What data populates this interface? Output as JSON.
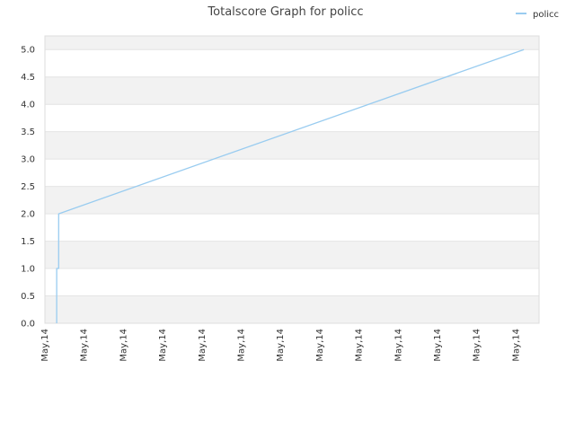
{
  "chart_data": {
    "type": "line",
    "title": "Totalscore Graph for policc",
    "xlabel": "",
    "ylabel": "",
    "x_tick_labels": [
      "May,14",
      "May,14",
      "May,14",
      "May,14",
      "May,14",
      "May,14",
      "May,14",
      "May,14",
      "May,14",
      "May,14",
      "May,14",
      "May,14",
      "May,14"
    ],
    "y_tick_labels": [
      "0.0",
      "0.5",
      "1.0",
      "1.5",
      "2.0",
      "2.5",
      "3.0",
      "3.5",
      "4.0",
      "4.5",
      "5.0"
    ],
    "ylim": [
      0,
      5.25
    ],
    "legend_position": "top-right",
    "grid": true,
    "band_colors": [
      "#f2f2f2",
      "#ffffff"
    ],
    "series": [
      {
        "name": "policc",
        "color": "#99ccf0",
        "x": [
          0.3,
          0.3,
          0.35,
          0.35,
          12.2
        ],
        "values": [
          0,
          1,
          1,
          2,
          5
        ]
      }
    ]
  }
}
